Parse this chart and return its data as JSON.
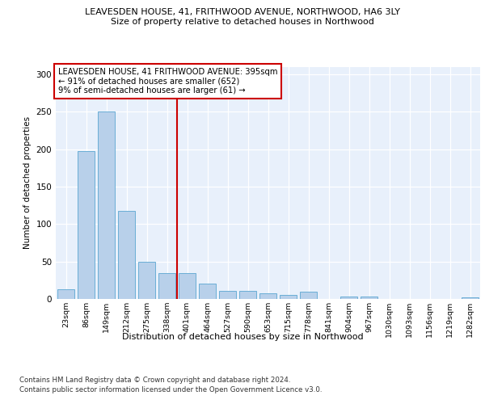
{
  "title1": "LEAVESDEN HOUSE, 41, FRITHWOOD AVENUE, NORTHWOOD, HA6 3LY",
  "title2": "Size of property relative to detached houses in Northwood",
  "xlabel": "Distribution of detached houses by size in Northwood",
  "ylabel": "Number of detached properties",
  "categories": [
    "23sqm",
    "86sqm",
    "149sqm",
    "212sqm",
    "275sqm",
    "338sqm",
    "401sqm",
    "464sqm",
    "527sqm",
    "590sqm",
    "653sqm",
    "715sqm",
    "778sqm",
    "841sqm",
    "904sqm",
    "967sqm",
    "1030sqm",
    "1093sqm",
    "1156sqm",
    "1219sqm",
    "1282sqm"
  ],
  "values": [
    13,
    197,
    250,
    117,
    50,
    35,
    35,
    20,
    11,
    11,
    8,
    5,
    10,
    0,
    3,
    3,
    0,
    0,
    0,
    0,
    2
  ],
  "bar_color": "#b8d0ea",
  "bar_edge_color": "#6aaed6",
  "vline_color": "#cc0000",
  "vline_index": 6,
  "annotation_text": "LEAVESDEN HOUSE, 41 FRITHWOOD AVENUE: 395sqm\n← 91% of detached houses are smaller (652)\n9% of semi-detached houses are larger (61) →",
  "annotation_box_facecolor": "#ffffff",
  "annotation_box_edgecolor": "#cc0000",
  "footer1": "Contains HM Land Registry data © Crown copyright and database right 2024.",
  "footer2": "Contains public sector information licensed under the Open Government Licence v3.0.",
  "plot_bg_color": "#e8f0fb",
  "fig_bg_color": "#ffffff",
  "ylim": [
    0,
    310
  ],
  "yticks": [
    0,
    50,
    100,
    150,
    200,
    250,
    300
  ]
}
